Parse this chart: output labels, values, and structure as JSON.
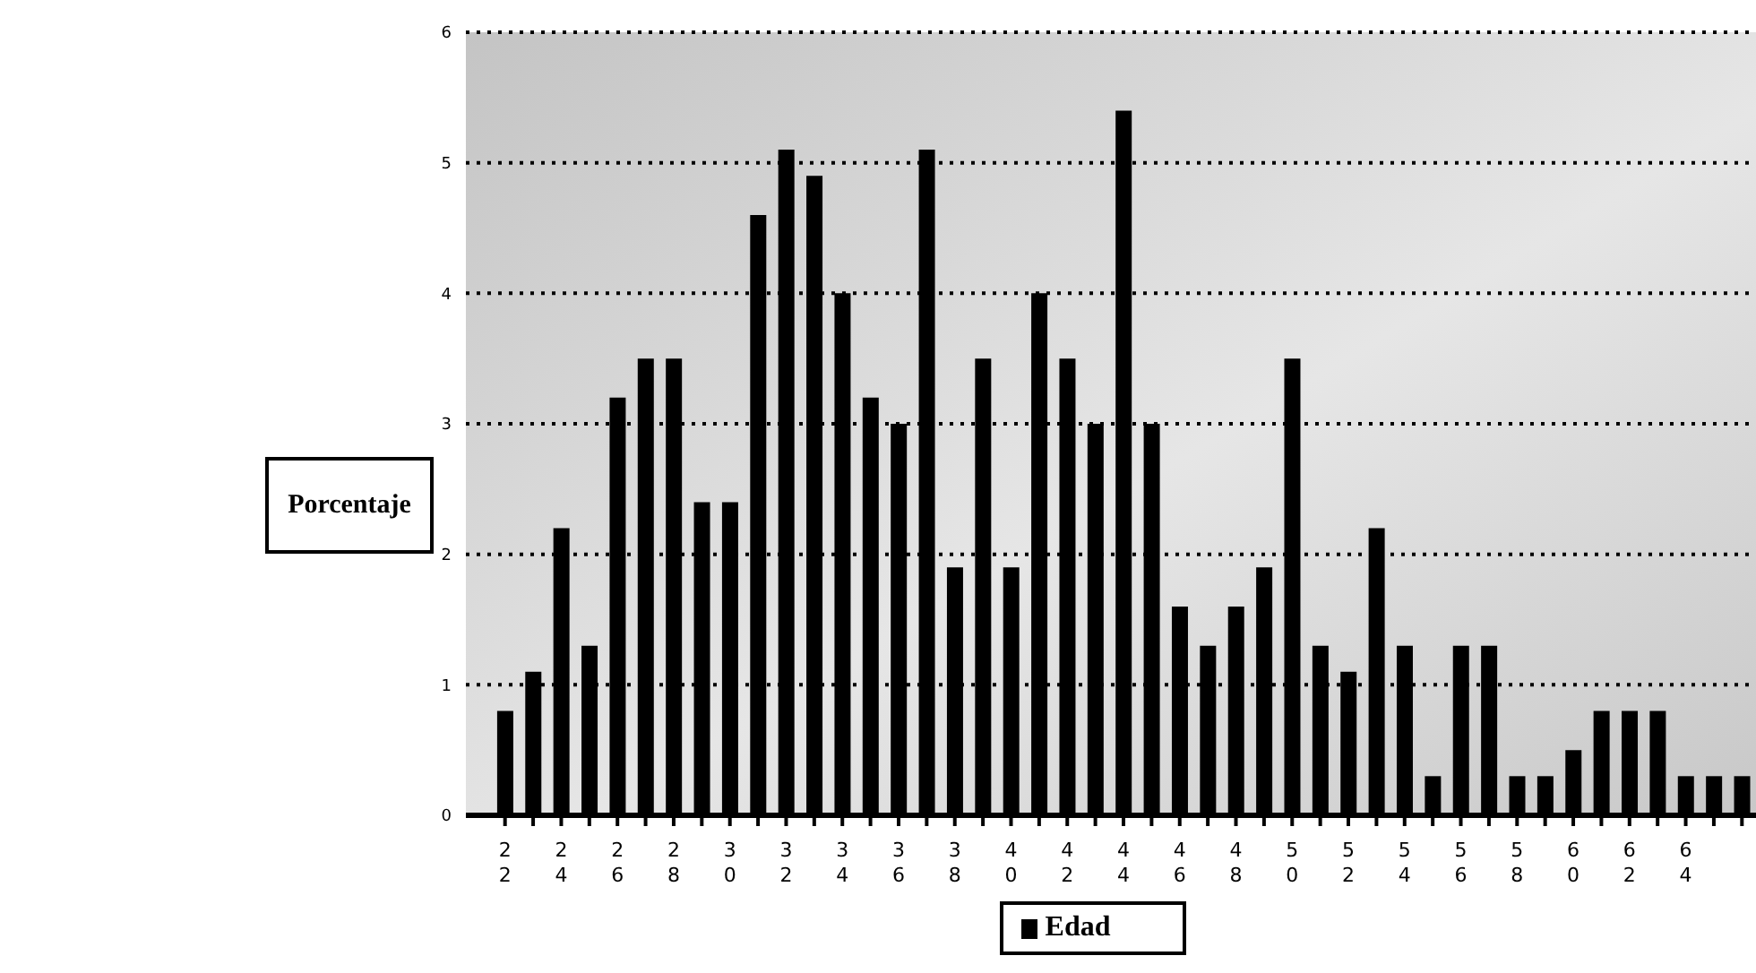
{
  "chart_data": {
    "type": "bar",
    "ylabel": "Porcentaje",
    "categories": [
      "22",
      null,
      "24",
      null,
      "26",
      null,
      "28",
      null,
      "30",
      null,
      "32",
      null,
      "34",
      null,
      "36",
      null,
      "38",
      null,
      "40",
      null,
      "42",
      null,
      "44",
      null,
      "46",
      null,
      "48",
      null,
      "50",
      null,
      "52",
      null,
      "54",
      null,
      "56",
      null,
      "58",
      null,
      "60",
      null,
      "62",
      null,
      "64",
      null,
      null
    ],
    "series": [
      {
        "name": "Edad",
        "color": "#000000",
        "values": [
          0.8,
          1.1,
          2.2,
          1.3,
          3.2,
          3.5,
          3.5,
          2.4,
          2.4,
          4.6,
          5.1,
          4.9,
          4.0,
          3.2,
          3.0,
          5.1,
          1.9,
          3.5,
          1.9,
          4.0,
          3.5,
          3.0,
          5.4,
          3.0,
          1.6,
          1.3,
          1.6,
          1.9,
          3.5,
          1.3,
          1.1,
          2.2,
          1.3,
          0.3,
          1.3,
          1.3,
          0.3,
          0.3,
          0.5,
          0.8,
          0.8,
          0.8,
          0.3,
          0.3,
          0.3
        ]
      }
    ],
    "ylim": [
      0,
      6
    ],
    "yticks": [
      0,
      1,
      2,
      3,
      4,
      5,
      6
    ],
    "grid": "y",
    "legend": "bottom"
  }
}
